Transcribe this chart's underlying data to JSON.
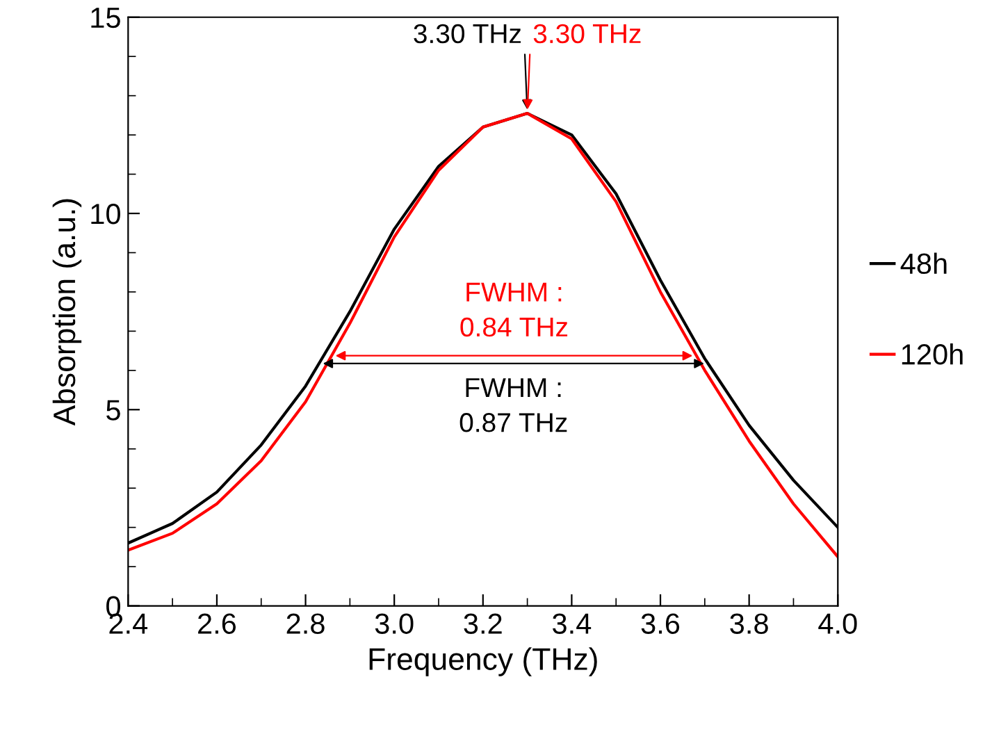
{
  "chart_data": {
    "type": "line",
    "xlabel": "Frequency (THz)",
    "ylabel": "Absorption (a.u.)",
    "x": [
      2.4,
      2.5,
      2.6,
      2.7,
      2.8,
      2.9,
      3.0,
      3.1,
      3.2,
      3.3,
      3.4,
      3.5,
      3.6,
      3.7,
      3.8,
      3.9,
      4.0
    ],
    "series": [
      {
        "name": "48h",
        "color": "#000000",
        "values": [
          1.6,
          2.1,
          2.9,
          4.1,
          5.6,
          7.5,
          9.6,
          11.2,
          12.2,
          12.55,
          12.0,
          10.5,
          8.3,
          6.3,
          4.6,
          3.2,
          2.0
        ]
      },
      {
        "name": "120h",
        "color": "#ff0000",
        "values": [
          1.42,
          1.85,
          2.6,
          3.7,
          5.2,
          7.2,
          9.4,
          11.1,
          12.2,
          12.55,
          11.9,
          10.3,
          8.0,
          6.0,
          4.2,
          2.6,
          1.25
        ]
      }
    ],
    "xlim": [
      2.4,
      4.0
    ],
    "ylim": [
      0,
      15
    ],
    "xticks": [
      {
        "value": 2.4,
        "label": "2.4"
      },
      {
        "value": 2.6,
        "label": "2.6"
      },
      {
        "value": 2.8,
        "label": "2.8"
      },
      {
        "value": 3.0,
        "label": "3.0"
      },
      {
        "value": 3.2,
        "label": "3.2"
      },
      {
        "value": 3.4,
        "label": "3.4"
      },
      {
        "value": 3.6,
        "label": "3.6"
      },
      {
        "value": 3.8,
        "label": "3.8"
      },
      {
        "value": 4.0,
        "label": "4.0"
      }
    ],
    "yticks": [
      0,
      5,
      10,
      15
    ],
    "grid": false,
    "legend": "right",
    "marker": "none",
    "line_style": "solid",
    "annotations": [
      "3.30 THz",
      "3.30 THz",
      "FWHM :\n0.84 THz",
      "FWHM :\n0.87 THz"
    ]
  }
}
